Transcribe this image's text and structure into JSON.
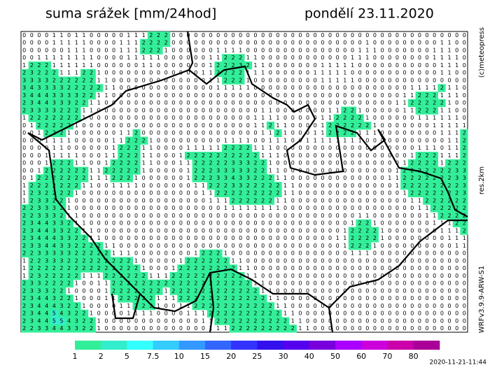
{
  "header": {
    "title": "suma srážek [mm/24hod]",
    "date": "pondělí 23.11.2020"
  },
  "side_labels": {
    "copyright": "(c)meteopress",
    "resolution": "res.2km",
    "model": "WRFv3.9.9-ARW-S1"
  },
  "timestamp": "2020-11-21-11:44",
  "grid": {
    "rows": [
      "000011011000001112220000000000000000000000000000000000000000",
      "000011111000011122220000000000000000000000000010000000001100",
      "000000111000011122210000001111000000000000000111000000011100",
      "001111111100001111100000011222110000000000001110000000011110",
      "122211111100000011000000012223211000000011111000000000001110",
      "232221112210000000000000112222111000000111110000000000001100",
      "333322222211000000000000011222100000000011111000000000000000",
      "343333222221100000000000001111100000000000000000000011112110",
      "344433332211000000000000000000000000000000000000000112221110",
      "234433322110000000000000000000000000000000000000001122222100",
      "233332221100000000000000000000001100000001122100000112221100",
      "122222221000000000000000000000011110000011222210000001111110",
      "012222210000000000000000000000011211000012222221000000011111",
      "001222100000011200000000000000001121000112222111000000001112",
      "000111100000112221000000000111100111001111111100000000000112",
      "000011000000122211000011111222211100000000000000000001110112",
      "000111110001122211000122222222221110000000000000000012221112",
      "000122211001222211000112222233322100000000000000000122221222",
      "001222222112222210000012223333322110000000000000001222222233",
      "012222222111222100000012223343322211000000000000011222222233",
      "122222221100111100000001122233222221100000000000001222222223",
      "123222210000000000000000112222222221100000000000000122222223",
      "123322100000000000000000011122222211000000000000000011222222",
      "223332100000000000000000000111111110000000000000000001122222",
      "223332110000000000000000000000000000000000000110000000112222",
      "234433211000000000000000000000000000000000001221000000011122",
      "234433221100000000000000000000000000000000012222100000001112",
      "234443322110000000000000000000000000000000112222100000000111",
      "233443322221100000000000000000000000000000012221000000000011",
      "223333322222111000000001222100000000000000001110000000000000",
      "122333222222222100000122222211000000000000000000000000000000",
      "122222222222222210001222222221100000000000000000000000000000",
      "123222221112222221112222222222110000000000000000000000000000",
      "233222210011222222222222222222211000000000000000000000000000",
      "233322100001222222212222222222221100000000000000000000000000",
      "234432210001122222111222222222222110000000000000000000000000",
      "234443221000011222100112222222222211000000000000000000000000",
      "234454322100001111000011122222222221100000000000000000000000",
      "234455432210000000000000112222222222110000000000000000000000",
      "223344332210000000000000011122222222211000000000000000000000"
    ]
  },
  "colorbar": {
    "labels": [
      "1",
      "2",
      "5",
      "7.5",
      "10",
      "15",
      "20",
      "25",
      "30",
      "40",
      "50",
      "60",
      "70",
      "80"
    ],
    "colors": [
      "#33ee99",
      "#33eecc",
      "#33ffff",
      "#33ccff",
      "#3399ff",
      "#3366ff",
      "#3333ff",
      "#3311ee",
      "#5500ee",
      "#7700dd",
      "#aa00ff",
      "#cc00dd",
      "#cc00aa",
      "#aa0099"
    ]
  }
}
